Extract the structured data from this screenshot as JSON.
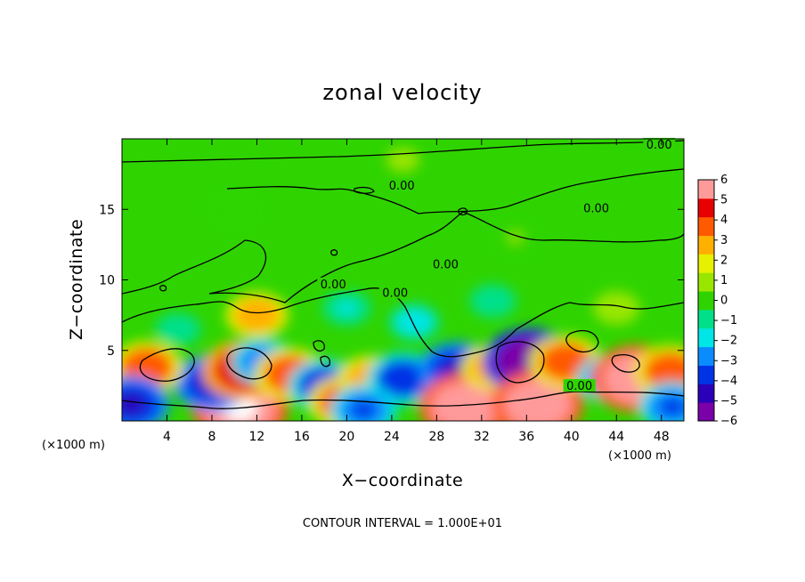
{
  "chart_data": {
    "type": "heatmap",
    "title": "zonal velocity",
    "xlabel": "X−coordinate",
    "ylabel": "Z−coordinate",
    "x_unit_left": "(×1000 m)",
    "x_unit_right": "(×1000 m)",
    "xlim": [
      0,
      50
    ],
    "ylim": [
      0,
      20
    ],
    "xticks": [
      4,
      8,
      12,
      16,
      20,
      24,
      28,
      32,
      36,
      40,
      44,
      48
    ],
    "xtick_labels": [
      "4",
      "8",
      "12",
      "16",
      "20",
      "24",
      "28",
      "32",
      "36",
      "40",
      "44",
      "48"
    ],
    "yticks": [
      5,
      10,
      15
    ],
    "ytick_labels": [
      "5",
      "10",
      "15"
    ],
    "colorbar": {
      "min": -6,
      "max": 6,
      "ticks": [
        6,
        5,
        4,
        3,
        2,
        1,
        0,
        -1,
        -2,
        -3,
        -4,
        -5,
        -6
      ],
      "tick_labels": [
        "6",
        "5",
        "4",
        "3",
        "2",
        "1",
        "0",
        "−1",
        "−2",
        "−3",
        "−4",
        "−5",
        "−6"
      ],
      "colors": [
        "#7a00a8",
        "#2a00b8",
        "#0033e6",
        "#0a8cff",
        "#00e5e5",
        "#00e08a",
        "#2fd400",
        "#99e600",
        "#e6f000",
        "#ffb000",
        "#ff5a00",
        "#e60000",
        "#ff9a9a"
      ]
    },
    "contour_labels": [
      {
        "text": "0.00",
        "x": 47.8,
        "y": 19.5
      },
      {
        "text": "0.00",
        "x": 24.9,
        "y": 16.6
      },
      {
        "text": "0.00",
        "x": 42.2,
        "y": 15.0
      },
      {
        "text": "0.00",
        "x": 18.8,
        "y": 9.6
      },
      {
        "text": "0.00",
        "x": 28.8,
        "y": 11.0
      },
      {
        "text": "0.00",
        "x": 24.3,
        "y": 9.0
      },
      {
        "text": "0.00",
        "x": 40.7,
        "y": 2.4
      }
    ],
    "features": [
      {
        "x": 10.5,
        "y": 0.9,
        "value": 6.5
      },
      {
        "x": 8.0,
        "y": 2.7,
        "value": -4.5
      },
      {
        "x": 2.2,
        "y": 3.8,
        "value": 4.0
      },
      {
        "x": 10.8,
        "y": 3.6,
        "value": 5.0
      },
      {
        "x": 12.5,
        "y": 4.2,
        "value": -3.0
      },
      {
        "x": 15.0,
        "y": 3.3,
        "value": 4.0
      },
      {
        "x": 18.0,
        "y": 2.5,
        "value": -4.0
      },
      {
        "x": 19.8,
        "y": 1.3,
        "value": 4.0
      },
      {
        "x": 22.0,
        "y": 3.0,
        "value": 3.0
      },
      {
        "x": 25.0,
        "y": 3.0,
        "value": -4.0
      },
      {
        "x": 29.8,
        "y": 3.6,
        "value": -4.5
      },
      {
        "x": 30.5,
        "y": 1.0,
        "value": 6.0
      },
      {
        "x": 33.0,
        "y": 3.8,
        "value": 3.0
      },
      {
        "x": 36.2,
        "y": 4.2,
        "value": -6.0
      },
      {
        "x": 37.0,
        "y": 1.2,
        "value": 6.0
      },
      {
        "x": 39.5,
        "y": 4.2,
        "value": 4.0
      },
      {
        "x": 43.5,
        "y": 3.0,
        "value": -3.5
      },
      {
        "x": 45.8,
        "y": 3.0,
        "value": 6.0
      },
      {
        "x": 48.8,
        "y": 3.5,
        "value": 4.0
      },
      {
        "x": 49.0,
        "y": 1.0,
        "value": -3.5
      },
      {
        "x": 0.8,
        "y": 1.2,
        "value": -4.5
      },
      {
        "x": 21.5,
        "y": 0.8,
        "value": -3.5
      },
      {
        "x": 12.0,
        "y": 7.5,
        "value": 3.0
      },
      {
        "x": 20.0,
        "y": 8.0,
        "value": -1.5
      },
      {
        "x": 26.0,
        "y": 7.0,
        "value": -1.8
      },
      {
        "x": 5.0,
        "y": 6.5,
        "value": -1.2
      },
      {
        "x": 33.0,
        "y": 8.5,
        "value": -1.3
      },
      {
        "x": 44.0,
        "y": 8.0,
        "value": 1.3
      },
      {
        "x": 25.0,
        "y": 18.5,
        "value": 0.8
      },
      {
        "x": 10.0,
        "y": 15.0,
        "value": -0.4
      },
      {
        "x": 35.0,
        "y": 13.0,
        "value": 0.5
      }
    ],
    "footer": "CONTOUR INTERVAL = 1.000E+01"
  }
}
